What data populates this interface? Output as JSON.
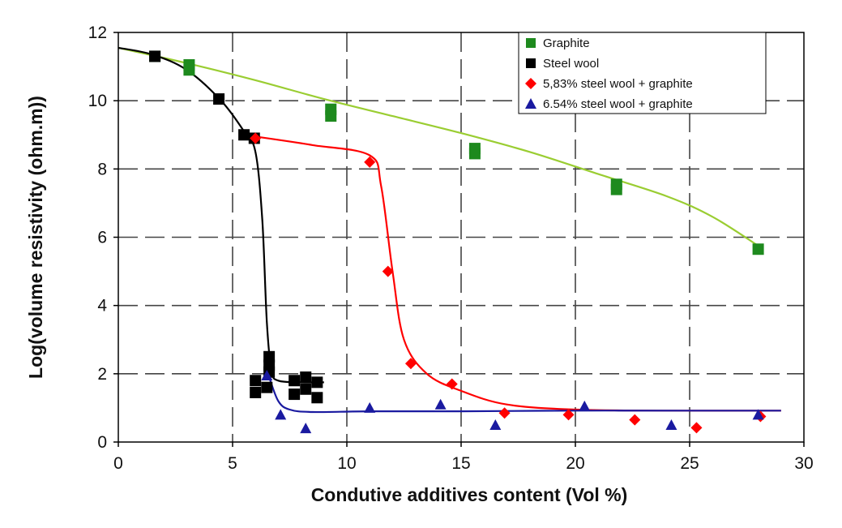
{
  "chart_data": {
    "type": "scatter",
    "xlabel": "Condutive additives content (Vol %)",
    "ylabel": "Log(volume resistivity  (ohm.m))",
    "xlim": [
      0,
      30
    ],
    "ylim": [
      0,
      12
    ],
    "x_ticks": [
      0,
      5,
      10,
      15,
      20,
      25,
      30
    ],
    "y_ticks": [
      0,
      2,
      4,
      6,
      8,
      10,
      12
    ],
    "x_tick_labels": [
      "0",
      "5",
      "10",
      "15",
      "20",
      "25",
      "30"
    ],
    "y_tick_labels": [
      "0",
      "2",
      "4",
      "6",
      "8",
      "10",
      "12"
    ],
    "grid": "dashed, major ticks",
    "legend_position": "top-right",
    "series": [
      {
        "name": "Graphite",
        "marker": "square",
        "color": "#1e8a1e",
        "fit_color": "#9acd32",
        "points": [
          [
            1.6,
            11.3
          ],
          [
            3.1,
            11.05
          ],
          [
            3.1,
            10.9
          ],
          [
            9.3,
            9.75
          ],
          [
            9.3,
            9.55
          ],
          [
            15.6,
            8.6
          ],
          [
            15.6,
            8.45
          ],
          [
            21.8,
            7.55
          ],
          [
            21.8,
            7.4
          ],
          [
            28.0,
            5.65
          ]
        ],
        "fit": [
          [
            0.0,
            11.55
          ],
          [
            3.0,
            11.1
          ],
          [
            6.0,
            10.6
          ],
          [
            9.0,
            10.05
          ],
          [
            12.0,
            9.55
          ],
          [
            15.0,
            9.05
          ],
          [
            18.0,
            8.5
          ],
          [
            21.0,
            7.85
          ],
          [
            24.0,
            7.2
          ],
          [
            26.0,
            6.6
          ],
          [
            28.0,
            5.75
          ]
        ]
      },
      {
        "name": "Steel wool",
        "marker": "square",
        "color": "#000000",
        "fit_color": "#000000",
        "points": [
          [
            1.6,
            11.3
          ],
          [
            4.4,
            10.05
          ],
          [
            5.5,
            9.0
          ],
          [
            5.95,
            8.9
          ],
          [
            6.0,
            1.8
          ],
          [
            6.0,
            1.45
          ],
          [
            6.5,
            1.6
          ],
          [
            6.6,
            2.05
          ],
          [
            6.6,
            2.25
          ],
          [
            6.6,
            2.5
          ],
          [
            7.7,
            1.8
          ],
          [
            7.7,
            1.4
          ],
          [
            8.2,
            1.9
          ],
          [
            8.2,
            1.55
          ],
          [
            8.7,
            1.75
          ],
          [
            8.7,
            1.3
          ]
        ],
        "fit": [
          [
            0.0,
            11.55
          ],
          [
            1.5,
            11.35
          ],
          [
            3.0,
            10.9
          ],
          [
            4.5,
            10.0
          ],
          [
            5.5,
            9.1
          ],
          [
            6.0,
            8.5
          ],
          [
            6.3,
            6.5
          ],
          [
            6.5,
            3.5
          ],
          [
            6.7,
            2.1
          ],
          [
            7.0,
            1.8
          ],
          [
            8.0,
            1.75
          ],
          [
            9.0,
            1.75
          ]
        ]
      },
      {
        "name": "5,83% steel wool + graphite",
        "marker": "diamond",
        "color": "#ff0000",
        "fit_color": "#ff0000",
        "points": [
          [
            6.0,
            8.9
          ],
          [
            11.0,
            8.2
          ],
          [
            11.8,
            5.0
          ],
          [
            12.8,
            2.3
          ],
          [
            14.6,
            1.7
          ],
          [
            16.9,
            0.85
          ],
          [
            19.7,
            0.8
          ],
          [
            22.6,
            0.65
          ],
          [
            25.3,
            0.42
          ],
          [
            28.1,
            0.75
          ]
        ],
        "fit": [
          [
            6.0,
            8.95
          ],
          [
            8.5,
            8.7
          ],
          [
            11.0,
            8.4
          ],
          [
            11.5,
            7.5
          ],
          [
            12.0,
            5.0
          ],
          [
            12.5,
            3.0
          ],
          [
            13.5,
            2.0
          ],
          [
            15.0,
            1.5
          ],
          [
            17.0,
            1.1
          ],
          [
            20.0,
            0.95
          ],
          [
            24.0,
            0.92
          ],
          [
            29.0,
            0.92
          ]
        ]
      },
      {
        "name": "6.54% steel wool + graphite",
        "marker": "triangle",
        "color": "#1a1aa0",
        "fit_color": "#1a1aa0",
        "points": [
          [
            6.5,
            1.95
          ],
          [
            7.1,
            0.8
          ],
          [
            8.2,
            0.4
          ],
          [
            11.0,
            1.0
          ],
          [
            14.1,
            1.1
          ],
          [
            16.5,
            0.5
          ],
          [
            20.4,
            1.05
          ],
          [
            24.2,
            0.5
          ],
          [
            28.0,
            0.8
          ]
        ],
        "fit": [
          [
            6.6,
            1.9
          ],
          [
            7.0,
            1.2
          ],
          [
            7.5,
            0.95
          ],
          [
            8.5,
            0.88
          ],
          [
            11.0,
            0.9
          ],
          [
            15.0,
            0.9
          ],
          [
            20.0,
            0.92
          ],
          [
            25.0,
            0.92
          ],
          [
            29.0,
            0.92
          ]
        ]
      }
    ]
  }
}
